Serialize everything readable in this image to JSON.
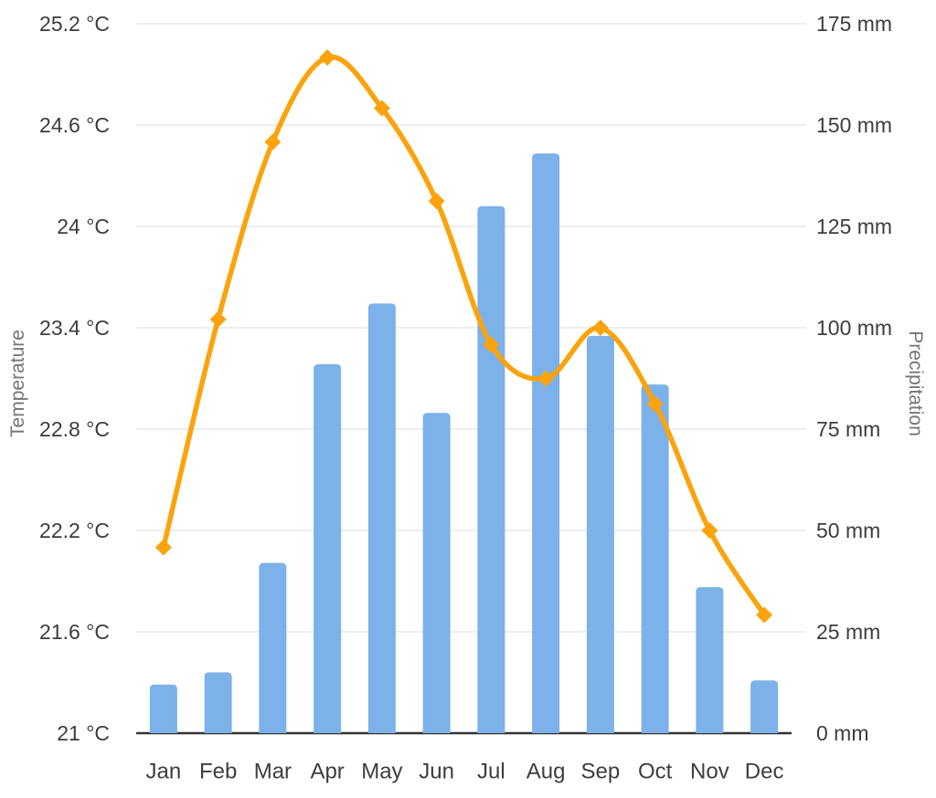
{
  "chart_data": {
    "type": "combo",
    "title": "",
    "categories": [
      "Jan",
      "Feb",
      "Mar",
      "Apr",
      "May",
      "Jun",
      "Jul",
      "Aug",
      "Sep",
      "Oct",
      "Nov",
      "Dec"
    ],
    "series": [
      {
        "name": "Precipitation",
        "type": "bar",
        "axis": "right",
        "unit": "mm",
        "color": "#7CB1E9",
        "values": [
          12,
          15,
          42,
          91,
          106,
          79,
          130,
          143,
          98,
          86,
          36,
          13
        ]
      },
      {
        "name": "Temperature",
        "type": "line",
        "axis": "left",
        "unit": "°C",
        "color": "#FBA30D",
        "marker": "diamond",
        "values": [
          22.1,
          23.45,
          24.5,
          25.0,
          24.7,
          24.15,
          23.3,
          23.1,
          23.4,
          22.95,
          22.2,
          21.7
        ]
      }
    ],
    "left_axis": {
      "title": "Temperature",
      "min": 21,
      "max": 25.2,
      "tick_labels": [
        "25.2 °C",
        "24.6 °C",
        "24 °C",
        "23.4 °C",
        "22.8 °C",
        "22.2 °C",
        "21.6 °C",
        "21 °C"
      ]
    },
    "right_axis": {
      "title": "Precipitation",
      "min": 0,
      "max": 175,
      "tick_labels": [
        "175 mm",
        "150 mm",
        "125 mm",
        "100 mm",
        "75 mm",
        "50 mm",
        "25 mm",
        "0 mm"
      ]
    },
    "grid": true,
    "legend": "none",
    "styles": {
      "grid_color": "#e8e8e8",
      "axis_line_color": "#333333",
      "tick_label_color": "#3d3d3d",
      "axis_title_color": "#757575",
      "background": "#ffffff"
    }
  }
}
